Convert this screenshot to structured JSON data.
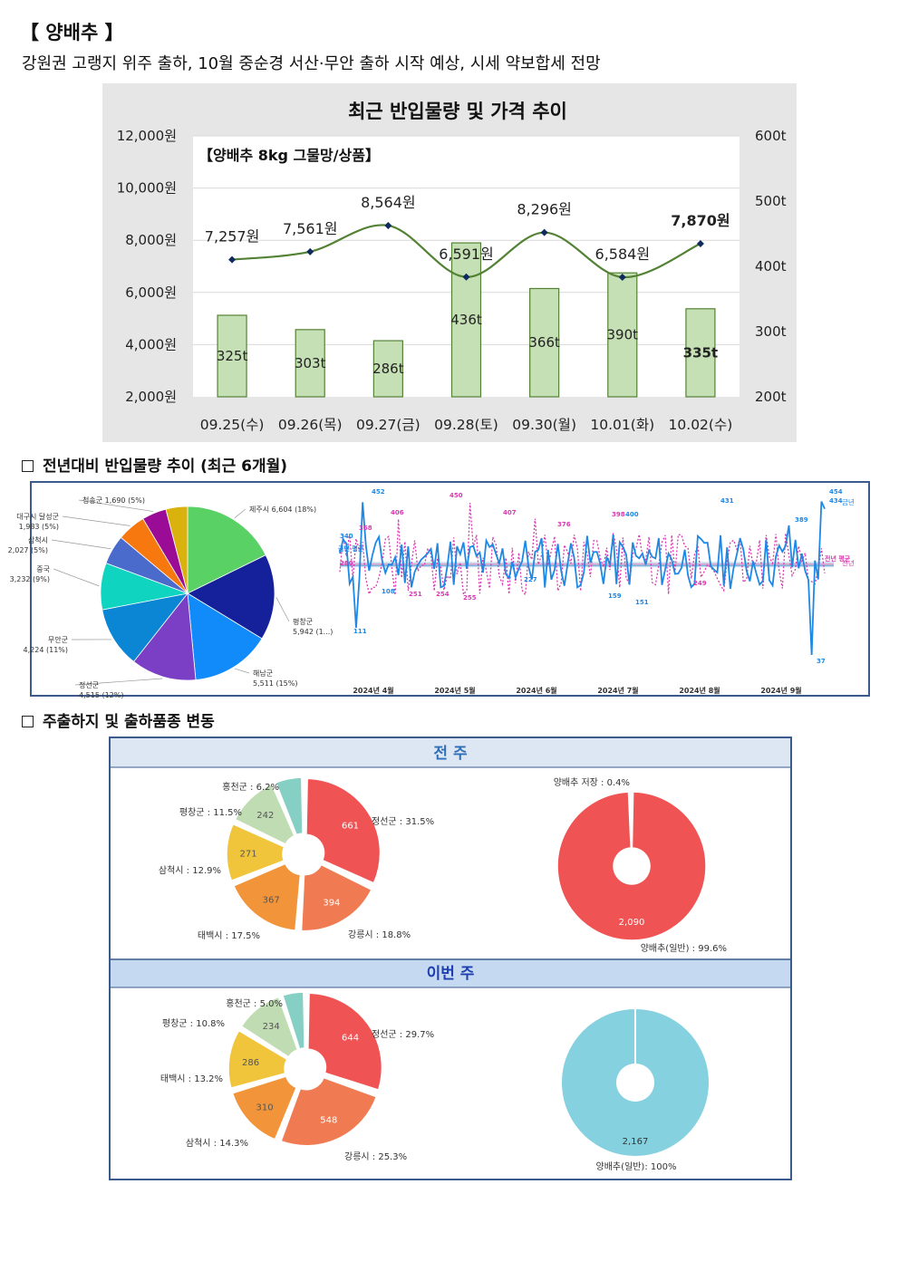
{
  "header": {
    "title": "【 양배추 】",
    "subtitle": "강원권 고랭지 위주 출하, 10월 중순경 서산·무안 출하 시작 예상, 시세 약보합세 전망"
  },
  "section2_label": "전년대비 반입물량 추이 (최근 6개월)",
  "section3_label": "주출하지 및 출하품종 변동",
  "chart_data": [
    {
      "type": "bar+line",
      "title": "최근 반입물량 및 가격 추이",
      "subtitle": "【양배추 8kg 그물망/상품】",
      "categories": [
        "09.25(수)",
        "09.26(목)",
        "09.27(금)",
        "09.28(토)",
        "09.30(월)",
        "10.01(화)",
        "10.02(수)"
      ],
      "series": [
        {
          "values": [
            325,
            303,
            286,
            436,
            366,
            390,
            335
          ],
          "labels": [
            "325t",
            "303t",
            "286t",
            "436t",
            "366t",
            "390t",
            "335t"
          ],
          "axis": "right",
          "color": "#c5e0b4"
        },
        {
          "values": [
            7257,
            7561,
            8564,
            6591,
            8296,
            6584,
            7870
          ],
          "labels": [
            "7,257원",
            "7,561원",
            "8,564원",
            "6,591원",
            "8,296원",
            "6,584원",
            "7,870원"
          ],
          "axis": "left",
          "color": "#548235"
        }
      ],
      "yleft_ticks": [
        "2,000원",
        "4,000원",
        "6,000원",
        "8,000원",
        "10,000원",
        "12,000원"
      ],
      "yleft_range": [
        2000,
        12000
      ],
      "yright_ticks": [
        "200t",
        "300t",
        "400t",
        "500t",
        "600t"
      ],
      "yright_range": [
        200,
        600
      ]
    },
    {
      "type": "pie",
      "labels": [
        "제주시 6,604 (18%)",
        "평창군 5,942 (1...)",
        "해남군 5,511 (15%)",
        "정선군 4,515 (12%)",
        "무안군 4,224 (11%)",
        "중국 3,232 (9%)",
        "삼척시 2,027 (5%)",
        "대구시 달성군 1,983 (5%)",
        "청송군 1,690 (5%)",
        ""
      ],
      "values": [
        6604,
        5942,
        5511,
        4515,
        4224,
        3232,
        2027,
        1983,
        1690,
        1500
      ],
      "colors": [
        "#5ad165",
        "#14219a",
        "#128bfa",
        "#7a3fc4",
        "#0a86d4",
        "#0ed4c0",
        "#4b6bcc",
        "#f7780e",
        "#9b0c96",
        "#d9b20e"
      ]
    },
    {
      "type": "line",
      "series": [
        {
          "name": "금년",
          "color": "#1e88e5"
        },
        {
          "name": "전년",
          "color": "#d63ab0"
        }
      ],
      "x_ticks": [
        "2024년 4월",
        "2024년 5월",
        "2024년 6월",
        "2024년 7월",
        "2024년 8월",
        "2024년 9월"
      ],
      "annotations": [
        "452",
        "340",
        "454",
        "434",
        "431",
        "389",
        "400",
        "398",
        "450",
        "407",
        "406",
        "376",
        "368",
        "280",
        "37",
        "111",
        "159",
        "151",
        "108",
        "227",
        "251",
        "254",
        "255",
        "257",
        "249",
        "284",
        "금년 평균",
        "전년 평균"
      ]
    },
    {
      "type": "pie",
      "title": "전 주",
      "values": [
        661,
        394,
        367,
        271,
        242,
        130
      ],
      "value_labels": [
        "661",
        "394",
        "367",
        "271",
        "242",
        ""
      ],
      "labels": [
        "정선군 : 31.5%",
        "강릉시 : 18.8%",
        "태백시 : 17.5%",
        "삼척시 : 12.9%",
        "평창군 : 11.5%",
        "홍천군 : 6.2%"
      ],
      "colors": [
        "#f05353",
        "#f07b52",
        "#f2953a",
        "#f1c53b",
        "#bfdcb2",
        "#86cfc4"
      ]
    },
    {
      "type": "pie",
      "title": "전 주",
      "values": [
        2090,
        8
      ],
      "value_labels": [
        "2,090"
      ],
      "labels": [
        "양배추(일반) : 99.6%",
        "양배추 저장 : 0.4%"
      ],
      "colors": [
        "#f05353",
        "#f7a8a8"
      ]
    },
    {
      "type": "pie",
      "title": "이번 주",
      "values": [
        644,
        548,
        310,
        286,
        234,
        110
      ],
      "value_labels": [
        "644",
        "548",
        "310",
        "286",
        "234",
        ""
      ],
      "labels": [
        "정선군 : 29.7%",
        "강릉시 : 25.3%",
        "삼척시 : 14.3%",
        "태백시 : 13.2%",
        "평창군 : 10.8%",
        "홍천군 : 5.0%"
      ],
      "colors": [
        "#f05353",
        "#f07b52",
        "#f2953a",
        "#f1c53b",
        "#bfdcb2",
        "#86cfc4"
      ]
    },
    {
      "type": "pie",
      "title": "이번 주",
      "values": [
        2167
      ],
      "value_labels": [
        "2,167"
      ],
      "labels": [
        "양배추(일반): 100%"
      ],
      "colors": [
        "#86d1e0"
      ]
    }
  ]
}
